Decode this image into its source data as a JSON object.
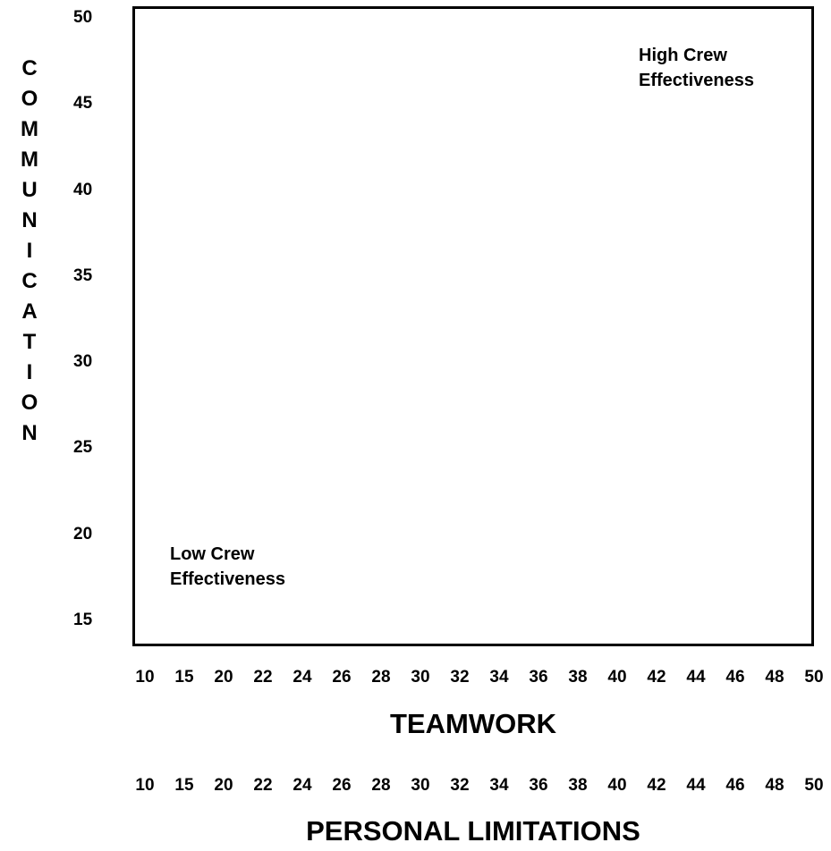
{
  "chart_data": {
    "type": "scatter",
    "title": "",
    "series": [],
    "y_axis": {
      "label": "COMMUNICATION",
      "ticks": [
        "50",
        "45",
        "40",
        "35",
        "30",
        "25",
        "20",
        "15"
      ]
    },
    "x_axis_primary": {
      "label": "TEAMWORK",
      "ticks": [
        "10",
        "15",
        "20",
        "22",
        "24",
        "26",
        "28",
        "30",
        "32",
        "34",
        "36",
        "38",
        "40",
        "42",
        "44",
        "46",
        "48",
        "50"
      ]
    },
    "x_axis_secondary": {
      "label": "PERSONAL LIMITATIONS",
      "ticks": [
        "10",
        "15",
        "20",
        "22",
        "24",
        "26",
        "28",
        "30",
        "32",
        "34",
        "36",
        "38",
        "40",
        "42",
        "44",
        "46",
        "48",
        "50"
      ]
    },
    "annotations": {
      "high": [
        "High Crew",
        "Effectiveness"
      ],
      "low": [
        "Low Crew",
        "Effectiveness"
      ]
    },
    "grid": false,
    "legend": "none"
  }
}
